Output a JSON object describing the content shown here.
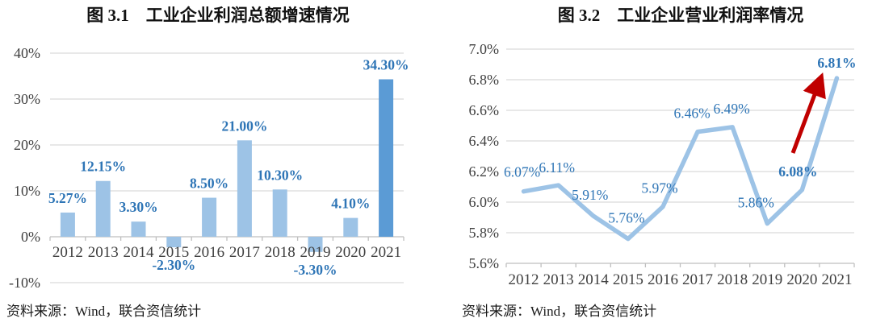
{
  "chart_data": [
    {
      "type": "bar",
      "title": "图 3.1　工业企业利润总额增速情况",
      "categories": [
        "2012",
        "2013",
        "2014",
        "2015",
        "2016",
        "2017",
        "2018",
        "2019",
        "2020",
        "2021"
      ],
      "values": [
        5.27,
        12.15,
        3.3,
        -2.3,
        8.5,
        21.0,
        10.3,
        -3.3,
        4.1,
        34.3
      ],
      "labels": [
        "5.27%",
        "12.15%",
        "3.30%",
        "-2.30%",
        "8.50%",
        "21.00%",
        "10.30%",
        "-3.30%",
        "4.10%",
        "34.30%"
      ],
      "ylim": [
        -10,
        40
      ],
      "ytick_step": 10,
      "ytick_labels": [
        "40%",
        "30%",
        "20%",
        "10%",
        "0%",
        "-10%"
      ],
      "highlight_index": 9,
      "grid": true,
      "legend": "none",
      "colors": {
        "bar": "#9DC3E6",
        "bar_highlight": "#5B9BD5",
        "label": "#2E75B6",
        "grid": "#D9D9D9",
        "axis": "#BFBFBF",
        "tick_text": "#3F3F3F"
      },
      "source": "资料来源：Wind，联合资信统计"
    },
    {
      "type": "line",
      "title": "图 3.2　工业企业营业利润率情况",
      "categories": [
        "2012",
        "2013",
        "2014",
        "2015",
        "2016",
        "2017",
        "2018",
        "2019",
        "2020",
        "2021"
      ],
      "values": [
        6.07,
        6.11,
        5.91,
        5.76,
        5.97,
        6.46,
        6.49,
        5.86,
        6.08,
        6.81
      ],
      "labels": [
        "6.07%",
        "6.11%",
        "5.91%",
        "5.76%",
        "5.97%",
        "6.46%",
        "6.49%",
        "5.86%",
        "6.08%",
        "6.81%"
      ],
      "bold_label_indices": [
        8,
        9
      ],
      "ylim": [
        5.6,
        7.0
      ],
      "ytick_step": 0.2,
      "ytick_labels": [
        "7.0%",
        "6.8%",
        "6.6%",
        "6.4%",
        "6.2%",
        "6.0%",
        "5.8%",
        "5.6%"
      ],
      "grid": true,
      "legend": "none",
      "annotation": "red-up-arrow",
      "colors": {
        "line": "#9DC3E6",
        "label": "#2E75B6",
        "arrow": "#C00000",
        "grid": "#D9D9D9",
        "axis": "#BFBFBF",
        "tick_text": "#3F3F3F"
      },
      "source": "资料来源：Wind，联合资信统计"
    }
  ]
}
